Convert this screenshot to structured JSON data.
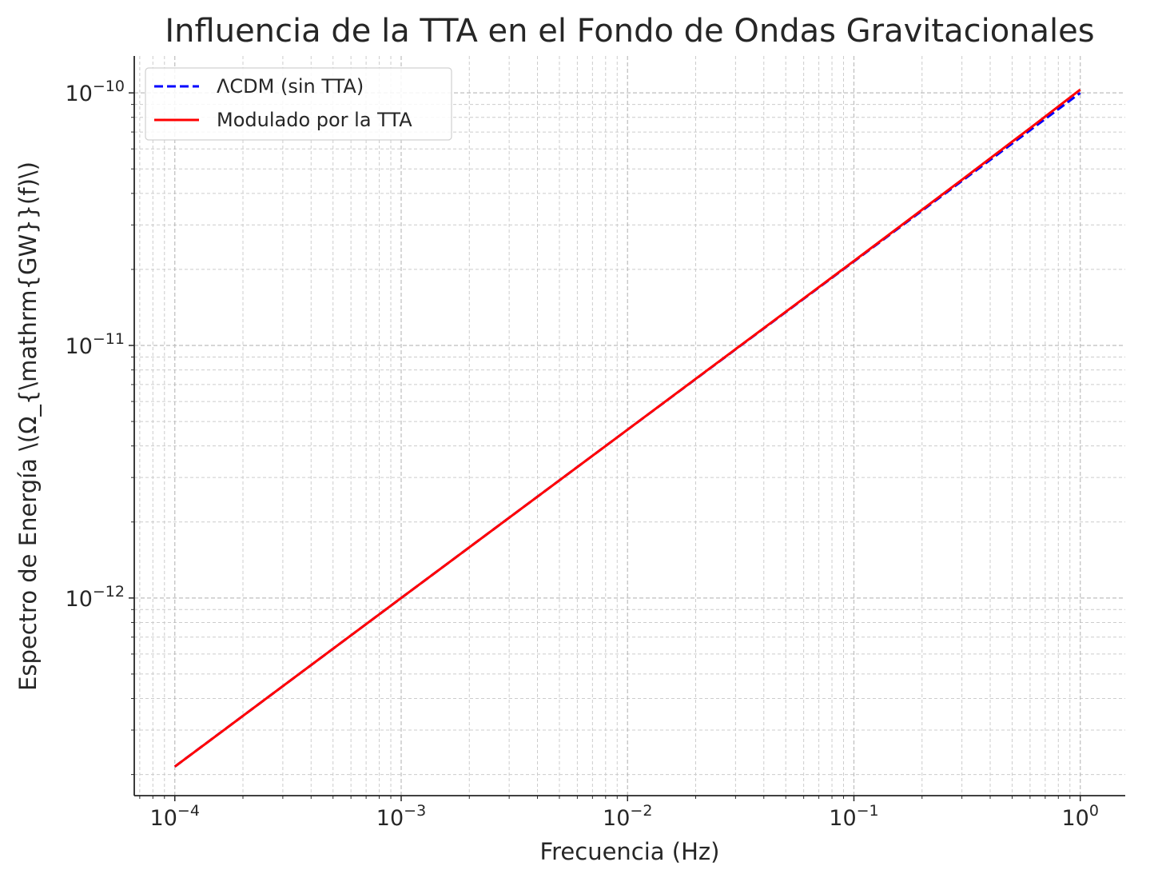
{
  "chart_data": {
    "type": "line",
    "title": "Influencia de la TTA en el Fondo de Ondas Gravitacionales",
    "xlabel": "Frecuencia (Hz)",
    "ylabel": "Espectro de Energía \\(Ω_{\\mathrm{GW}}(f)\\)",
    "xscale": "log",
    "yscale": "log",
    "xlim": [
      6.62e-05,
      1.58
    ],
    "ylim": [
      1.65e-13,
      1.4e-10
    ],
    "x_ticks": [
      {
        "value": 0.0001,
        "base": "10",
        "exp": "−4"
      },
      {
        "value": 0.001,
        "base": "10",
        "exp": "−3"
      },
      {
        "value": 0.01,
        "base": "10",
        "exp": "−2"
      },
      {
        "value": 0.1,
        "base": "10",
        "exp": "−1"
      },
      {
        "value": 1,
        "base": "10",
        "exp": "0"
      }
    ],
    "y_ticks": [
      {
        "value": 1e-12,
        "base": "10",
        "exp": "−12"
      },
      {
        "value": 1e-11,
        "base": "10",
        "exp": "−11"
      },
      {
        "value": 1e-10,
        "base": "10",
        "exp": "−10"
      }
    ],
    "grid": true,
    "legend_position": "top-left",
    "series": [
      {
        "name": "ΛCDM (sin TTA)",
        "color": "#0000ff",
        "style": "dashed",
        "x": [
          0.0001,
          0.001,
          0.01,
          0.1,
          0.3,
          0.6,
          1.0
        ],
        "y": [
          2.15e-13,
          1e-12,
          4.64e-12,
          2.15e-11,
          4.48e-11,
          7.11e-11,
          1e-10
        ]
      },
      {
        "name": "Modulado por la TTA",
        "color": "#ff0000",
        "style": "solid",
        "x": [
          0.0001,
          0.001,
          0.01,
          0.1,
          0.3,
          0.6,
          1.0
        ],
        "y": [
          2.15e-13,
          1e-12,
          4.64e-12,
          2.16e-11,
          4.53e-11,
          7.25e-11,
          1.03e-10
        ]
      }
    ]
  }
}
